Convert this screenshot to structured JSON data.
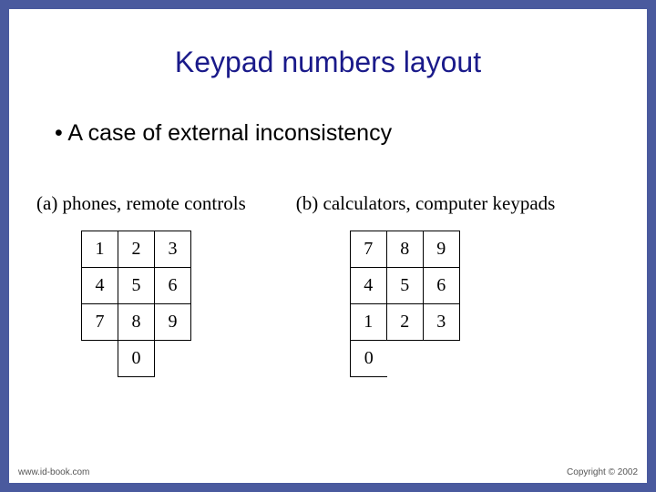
{
  "title": "Keypad numbers layout",
  "bullet": "A case of external inconsistency",
  "keypadA": {
    "caption": "(a) phones, remote controls",
    "rows": [
      [
        "1",
        "2",
        "3"
      ],
      [
        "4",
        "5",
        "6"
      ],
      [
        "7",
        "8",
        "9"
      ]
    ],
    "zero": "0"
  },
  "keypadB": {
    "caption": "(b) calculators, computer keypads",
    "rows": [
      [
        "7",
        "8",
        "9"
      ],
      [
        "4",
        "5",
        "6"
      ],
      [
        "1",
        "2",
        "3"
      ]
    ],
    "zero": "0"
  },
  "footer": {
    "left": "www.id-book.com",
    "right": "Copyright © 2002"
  },
  "colors": {
    "frame": "#4a5a9e",
    "background": "#ffffff",
    "title": "#1a1a8a",
    "text": "#000000",
    "border": "#000000"
  }
}
